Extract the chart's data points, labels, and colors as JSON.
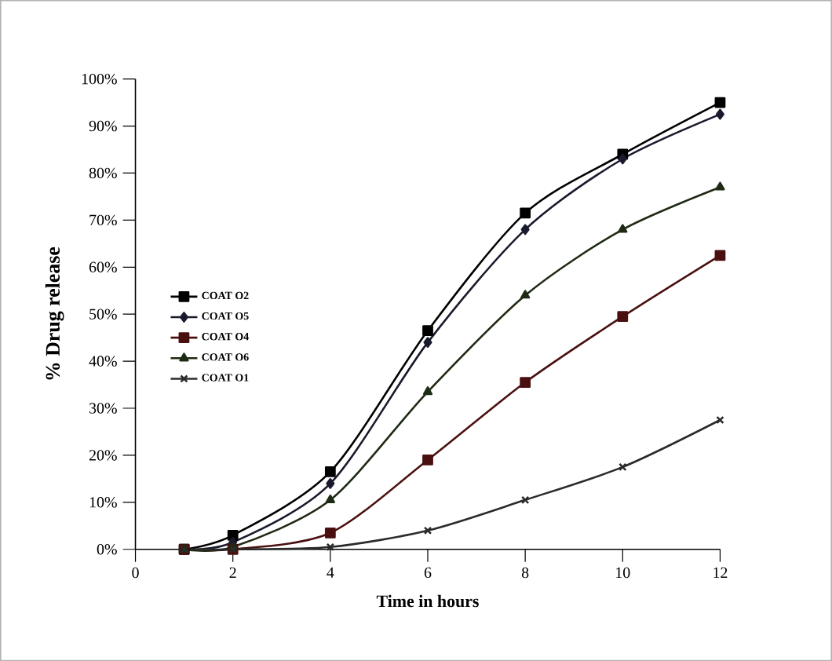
{
  "chart_data": {
    "type": "line",
    "xlabel": "Time in hours",
    "ylabel": "% Drug release",
    "x": [
      1,
      2,
      4,
      6,
      8,
      10,
      12
    ],
    "series": [
      {
        "name": "COAT O2",
        "color": "#000000",
        "marker": "square",
        "values": [
          0,
          3,
          16.5,
          46.5,
          71.5,
          84,
          95
        ]
      },
      {
        "name": "COAT O5",
        "color": "#1a1a2e",
        "marker": "diamond",
        "values": [
          0,
          1.5,
          14,
          44,
          68,
          83,
          92.5
        ]
      },
      {
        "name": "COAT O4",
        "color": "#4a1010",
        "marker": "square",
        "values": [
          0,
          0,
          3.5,
          19,
          35.5,
          49.5,
          62.5
        ]
      },
      {
        "name": "COAT O6",
        "color": "#1f2a14",
        "marker": "triangle",
        "values": [
          0,
          0.5,
          10.5,
          33.5,
          54,
          68,
          77
        ]
      },
      {
        "name": "COAT O1",
        "color": "#2b2b2b",
        "marker": "cross",
        "values": [
          0,
          0,
          0.5,
          4,
          10.5,
          17.5,
          27.5
        ]
      }
    ],
    "xlim": [
      0,
      12
    ],
    "xticks": [
      0,
      2,
      4,
      6,
      8,
      10,
      12
    ],
    "ylim": [
      0,
      100
    ],
    "yticks": [
      {
        "value": 0,
        "label": "0%"
      },
      {
        "value": 10,
        "label": "10%"
      },
      {
        "value": 20,
        "label": "20%"
      },
      {
        "value": 30,
        "label": "30%"
      },
      {
        "value": 40,
        "label": "40%"
      },
      {
        "value": 50,
        "label": "50%"
      },
      {
        "value": 60,
        "label": "60%"
      },
      {
        "value": 70,
        "label": "70%"
      },
      {
        "value": 80,
        "label": "80%"
      },
      {
        "value": 90,
        "label": "90%"
      },
      {
        "value": 100,
        "label": "100%"
      }
    ],
    "grid": false,
    "legend": "left",
    "line_style": "solid"
  }
}
